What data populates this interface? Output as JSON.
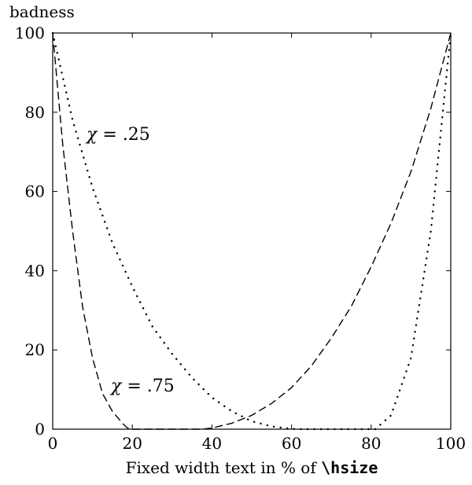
{
  "chart_data": {
    "type": "line",
    "xlabel_prefix": "Fixed width text in % of ",
    "xlabel_code": "\\hsize",
    "ylabel": "badness",
    "xlim": [
      0,
      100
    ],
    "ylim": [
      0,
      100
    ],
    "x_ticks": [
      "0",
      "20",
      "40",
      "60",
      "80",
      "100"
    ],
    "y_ticks": [
      "0",
      "20",
      "40",
      "60",
      "80",
      "100"
    ],
    "grid": false,
    "series": [
      {
        "name": "χ = .25",
        "label_symbol": "χ",
        "label_value": " = .25",
        "style": "dotted",
        "x": [
          0,
          5,
          10,
          15,
          20,
          25,
          30,
          35,
          40,
          45,
          50,
          55,
          60,
          62.5,
          65,
          70,
          75,
          80,
          81,
          85,
          90,
          95,
          100
        ],
        "y": [
          100,
          78,
          61,
          47,
          36,
          26,
          19,
          13,
          8,
          4.5,
          2,
          0.7,
          0.1,
          0,
          0,
          0,
          0,
          0,
          0,
          3.5,
          18,
          50,
          100
        ]
      },
      {
        "name": "χ = .75",
        "label_symbol": "χ",
        "label_value": " = .75",
        "style": "dashed",
        "x": [
          0,
          2.5,
          5,
          7.5,
          10,
          12.5,
          15,
          17.5,
          18.75,
          20,
          25,
          30,
          35,
          37.5,
          40,
          45,
          50,
          55,
          60,
          65,
          70,
          75,
          80,
          85,
          90,
          95,
          100
        ],
        "y": [
          100,
          72,
          50,
          31,
          18,
          9,
          4.5,
          1.5,
          0.3,
          0,
          0,
          0,
          0,
          0,
          0.3,
          1.5,
          3.5,
          6.5,
          10.5,
          16,
          23,
          31,
          41,
          52,
          65,
          81,
          100
        ]
      }
    ]
  }
}
